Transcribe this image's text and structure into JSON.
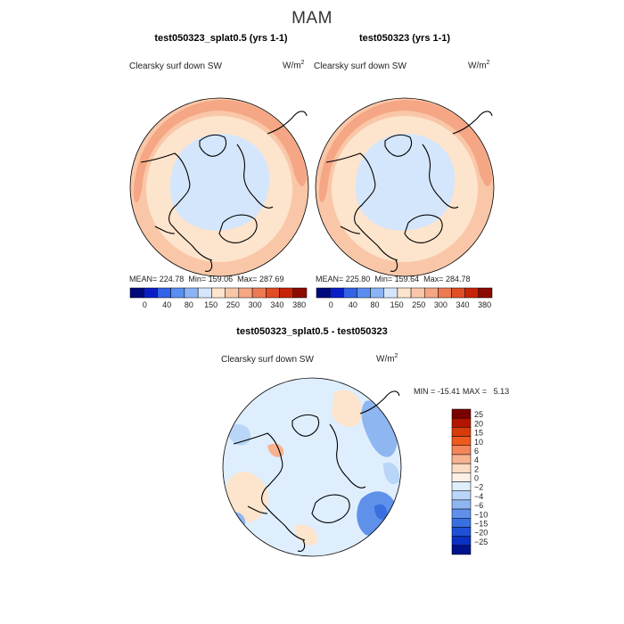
{
  "title": "MAM",
  "colors": {
    "cb_top": [
      "#000a7a",
      "#0a1ec8",
      "#3262e6",
      "#5a8ef0",
      "#8cb4f5",
      "#d4e6fc",
      "#fde4cc",
      "#f9c7a8",
      "#f5a684",
      "#ed7a54",
      "#e04e26",
      "#c8240a",
      "#8c0a00"
    ],
    "cb_diff": [
      "#7a0000",
      "#b41400",
      "#d83c0a",
      "#ec5a1e",
      "#f2855a",
      "#f7b290",
      "#fddcc4",
      "#fdf0e6",
      "#dfeefd",
      "#b9d5f8",
      "#8eb6f1",
      "#5f91ea",
      "#3a6fe0",
      "#1e50d8",
      "#0a30c4",
      "#00128c"
    ],
    "land": "#000000"
  },
  "chart_data": [
    {
      "type": "polar-map",
      "title": "test050323_splat0.5 (yrs 1-1)",
      "variable": "Clearsky surf down SW",
      "units": "W/m",
      "units_exp": "2",
      "stats": {
        "mean_label": "MEAN=",
        "mean": "224.78",
        "min_label": "Min=",
        "min": "159.06",
        "max_label": "Max=",
        "max": "287.69"
      },
      "colorbar_ticks": [
        "0",
        "40",
        "80",
        "150",
        "250",
        "300",
        "340",
        "380"
      ]
    },
    {
      "type": "polar-map",
      "title": "test050323 (yrs 1-1)",
      "variable": "Clearsky surf down SW",
      "units": "W/m",
      "units_exp": "2",
      "stats": {
        "mean_label": "MEAN=",
        "mean": "225.80",
        "min_label": "Min=",
        "min": "159.64",
        "max_label": "Max=",
        "max": "284.78"
      },
      "colorbar_ticks": [
        "0",
        "40",
        "80",
        "150",
        "250",
        "300",
        "340",
        "380"
      ]
    },
    {
      "type": "polar-map-difference",
      "title": "test050323_splat0.5 - test050323",
      "variable": "Clearsky surf down SW",
      "units": "W/m",
      "units_exp": "2",
      "stats": {
        "min_label": "MIN =",
        "min": "-15.41",
        "max_label": "MAX =",
        "max": "5.13"
      },
      "colorbar_ticks": [
        "25",
        "20",
        "15",
        "10",
        "6",
        "4",
        "2",
        "0",
        "−2",
        "−4",
        "−6",
        "−10",
        "−15",
        "−20",
        "−25"
      ]
    }
  ]
}
